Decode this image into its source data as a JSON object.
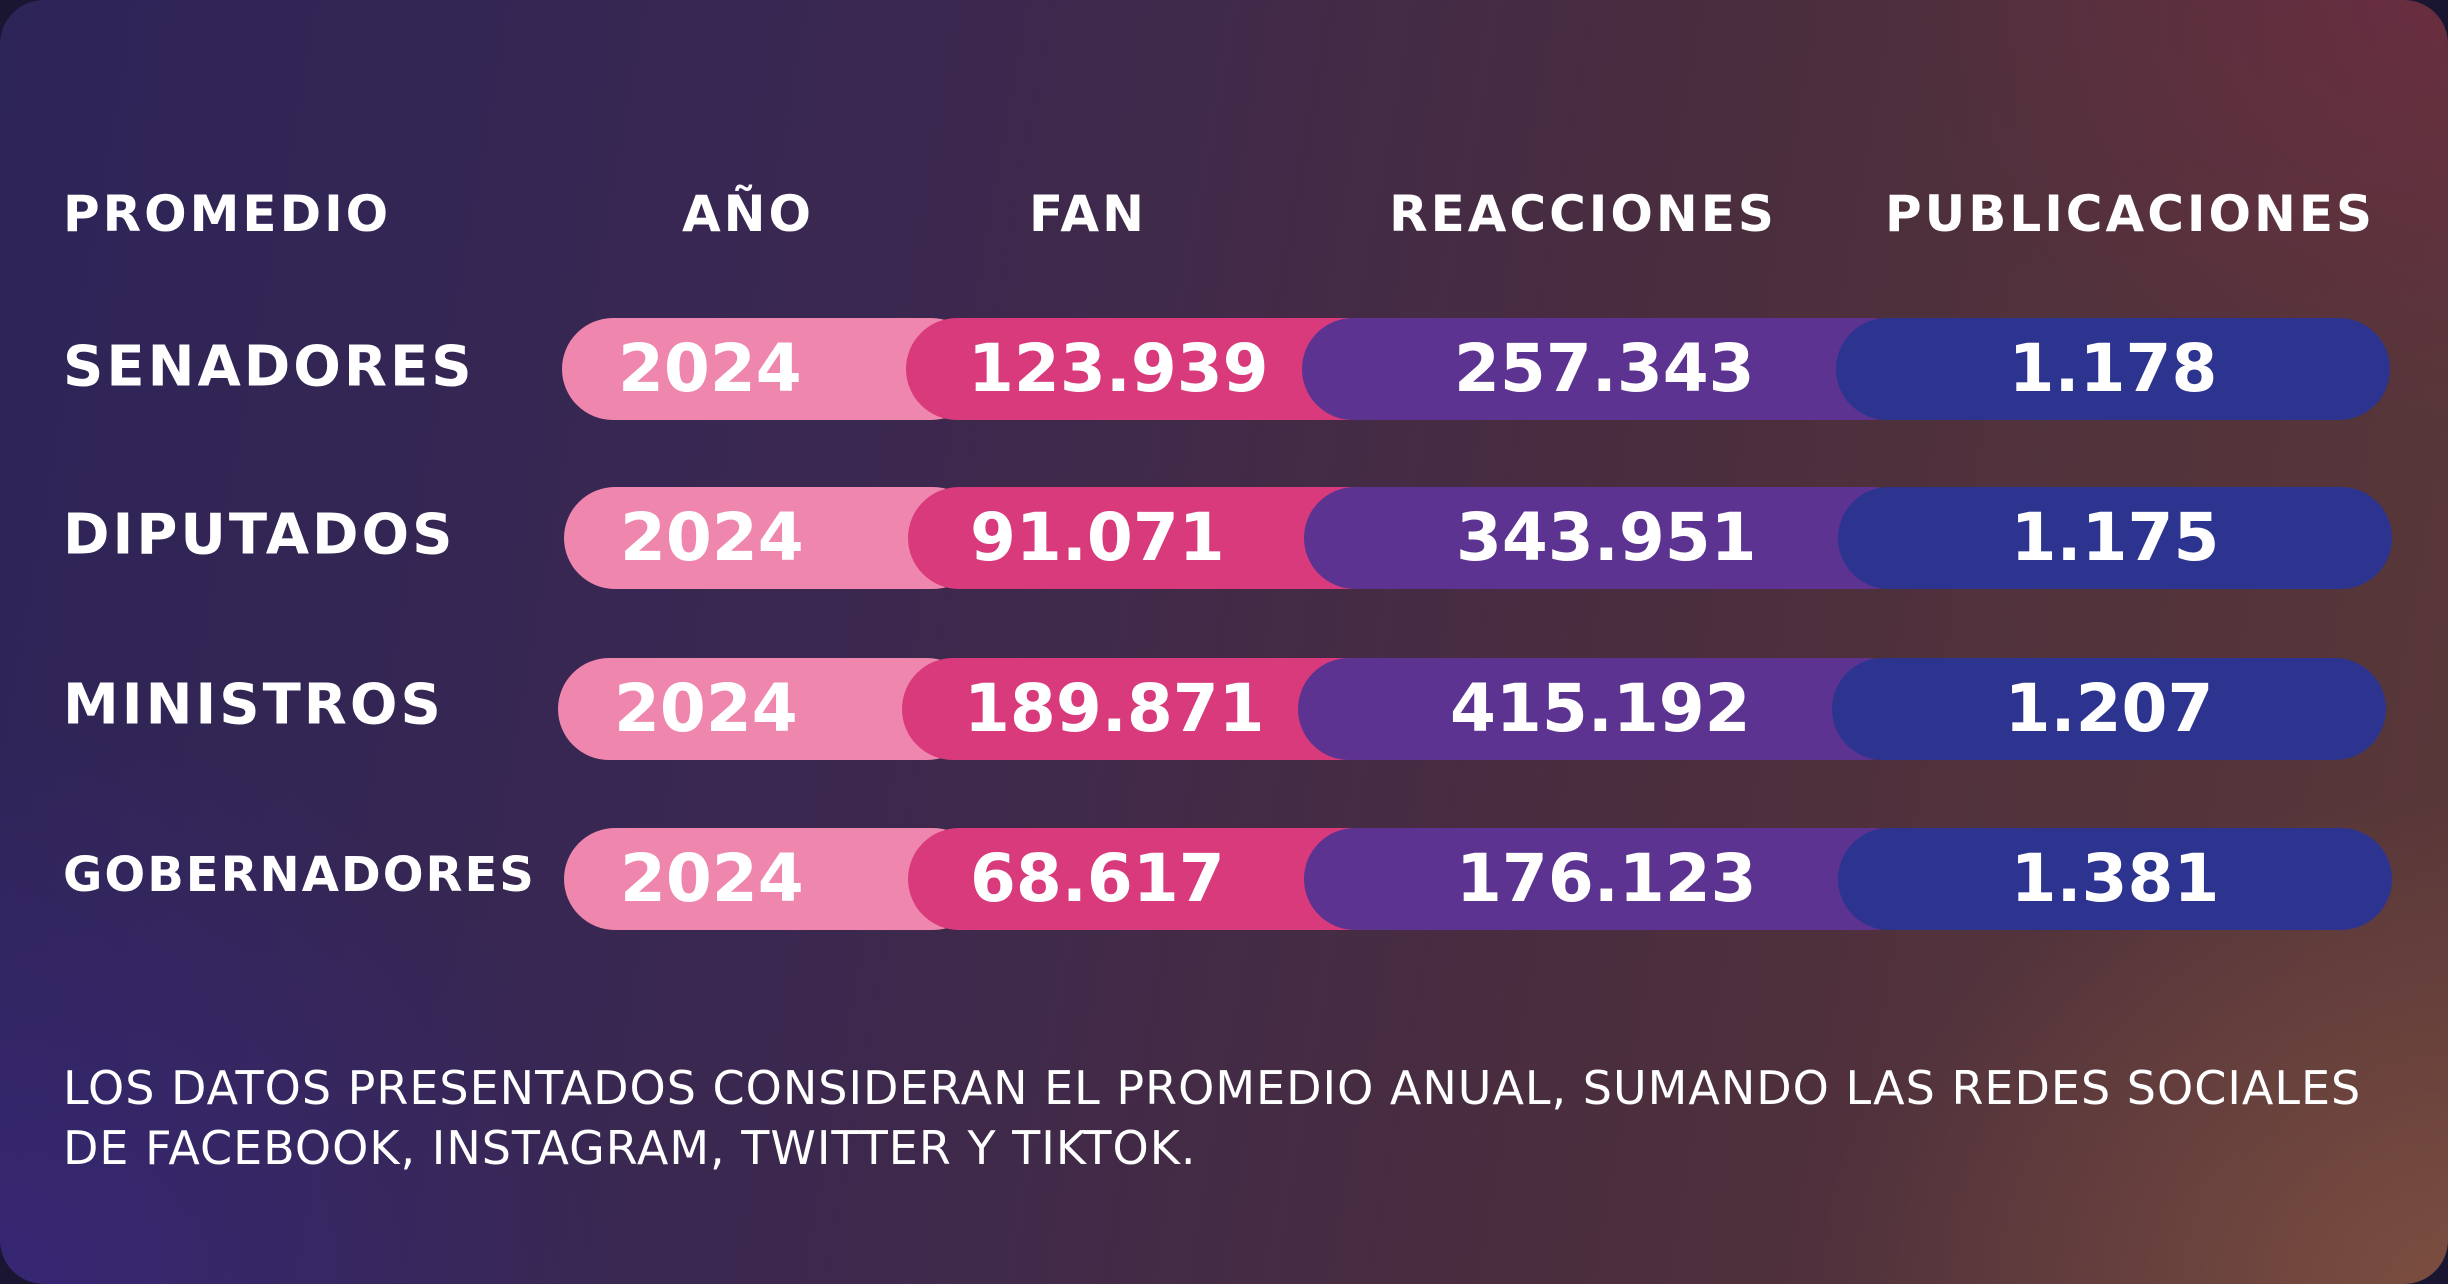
{
  "headers": {
    "promedio": "PROMEDIO",
    "anio": "AÑO",
    "fan": "FAN",
    "reacciones": "REACCIONES",
    "publicaciones": "PUBLICACIONES"
  },
  "rows": [
    {
      "label": "SENADORES",
      "year": "2024",
      "fan": "123.939",
      "reacciones": "257.343",
      "publicaciones": "1.178"
    },
    {
      "label": "DIPUTADOS",
      "year": "2024",
      "fan": "91.071",
      "reacciones": "343.951",
      "publicaciones": "1.175"
    },
    {
      "label": "MINISTROS",
      "year": "2024",
      "fan": "189.871",
      "reacciones": "415.192",
      "publicaciones": "1.207"
    },
    {
      "label": "GOBERNADORES",
      "year": "2024",
      "fan": "68.617",
      "reacciones": "176.123",
      "publicaciones": "1.381"
    }
  ],
  "note": "LOS DATOS PRESENTADOS CONSIDERAN EL PROMEDIO ANUAL, SUMANDO LAS REDES SOCIALES DE FACEBOOK, INSTAGRAM, TWITTER Y TIKTOK.",
  "colors": {
    "year": "#ef86ae",
    "fan": "#d83a7c",
    "reacciones": "#5c3391",
    "publicaciones": "#2c3490"
  }
}
